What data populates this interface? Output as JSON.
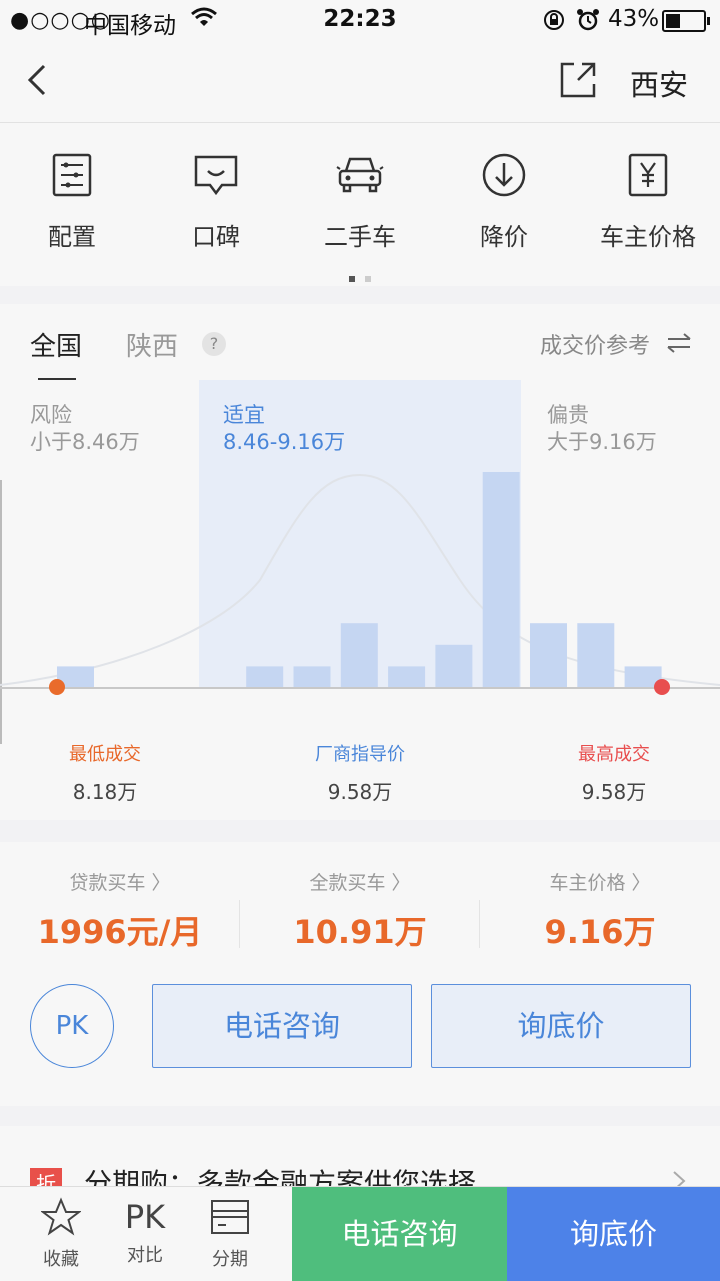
{
  "status_bar": {
    "signal": "●○○○○",
    "carrier": "中国移动",
    "time": "22:23",
    "battery": "43%",
    "battery_level": 0.43
  },
  "nav": {
    "city": "西安"
  },
  "quick_menu": {
    "items": [
      {
        "label": "配置",
        "icon": "config-icon"
      },
      {
        "label": "口碑",
        "icon": "reviews-icon"
      },
      {
        "label": "二手车",
        "icon": "used-car-icon"
      },
      {
        "label": "降价",
        "icon": "price-drop-icon"
      },
      {
        "label": "车主价格",
        "icon": "owner-price-icon"
      }
    ],
    "page_dots": 2,
    "active_page": 1
  },
  "price_panel": {
    "tabs": [
      "全国",
      "陕西"
    ],
    "active_tab": "全国",
    "help": "?",
    "reference": "成交价参考",
    "zones": {
      "risk": {
        "title": "风险",
        "range": "小于8.46万"
      },
      "fair": {
        "title": "适宜",
        "range": "8.46-9.16万"
      },
      "expensive": {
        "title": "偏贵",
        "range": "大于9.16万"
      }
    },
    "markers": {
      "lowest": {
        "label": "最低成交",
        "value": "8.18万"
      },
      "guide": {
        "label": "厂商指导价",
        "value": "9.58万"
      },
      "highest": {
        "label": "最高成交",
        "value": "9.58万"
      }
    }
  },
  "chart_data": {
    "type": "bar",
    "title": "",
    "xlabel": "",
    "ylabel": "",
    "description": "Distribution of transaction prices (relative frequency) across price bins from the lowest (8.18万) to the highest (9.58万)",
    "values": [
      1,
      0,
      0,
      0,
      1,
      1,
      3,
      1,
      2,
      10,
      3,
      3,
      1
    ],
    "ylim": [
      0,
      10
    ],
    "fair_range_bins": [
      4,
      9
    ],
    "colors": {
      "bar": "#c5d6f2",
      "fair_zone": "#e7edf8",
      "low_dot": "#e96b2b",
      "high_dot": "#e84e4e",
      "curve": "#e0e3e8"
    }
  },
  "prices": {
    "loan": {
      "title": "贷款买车",
      "value": "1996元/月"
    },
    "full": {
      "title": "全款买车",
      "value": "10.91万"
    },
    "owner": {
      "title": "车主价格",
      "value": "9.16万"
    }
  },
  "actions": {
    "pk": "PK",
    "call": "电话咨询",
    "inquire": "询底价"
  },
  "promo": {
    "badge": "折",
    "text": "分期购：多款金融方案供您选择"
  },
  "bottom_bar": {
    "favorite": "收藏",
    "compare_icon": "PK",
    "compare": "对比",
    "installment": "分期",
    "call": "电话咨询",
    "inquire": "询底价"
  },
  "colors": {
    "accent_blue": "#4a86d9",
    "price_orange": "#e8682a",
    "call_green": "#4fbe7d",
    "inquire_blue": "#4d82e8"
  }
}
